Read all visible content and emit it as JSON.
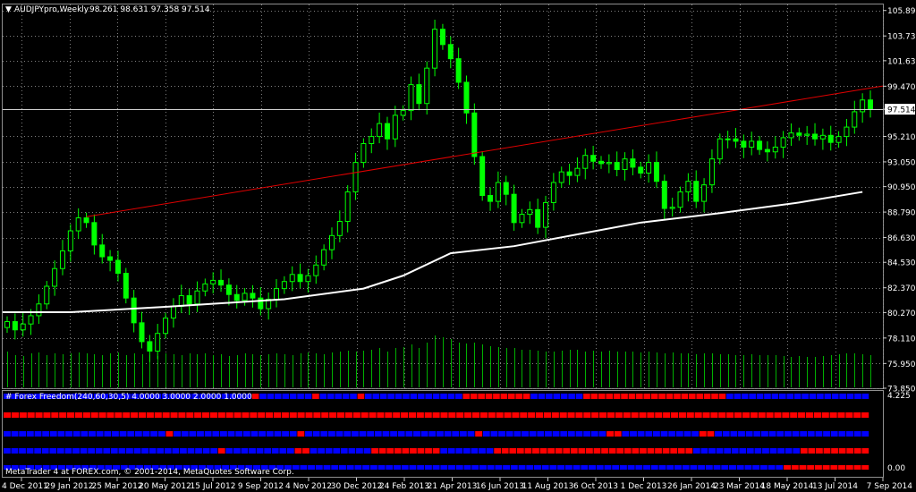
{
  "header": {
    "symbol_label": "AUDJPYpro,Weekly",
    "ohlc_label": "98.261 98.631 97.358 97.514"
  },
  "indicator": {
    "label": "# Forex Freedom(240,60,30,5) 4.0000 3.0000 2.0000 1.0000",
    "scale_top": "4.225",
    "scale_bottom": "0.00"
  },
  "footer": {
    "copyright": "MetaTrader 4 at FOREX.com, © 2001-2014, MetaQuotes Software Corp."
  },
  "colors": {
    "background": "#000000",
    "grid": "#7f7f7f",
    "candle_bull": "#00ff00",
    "candle_bear": "#00ff00",
    "volume": "#00b000",
    "moving_average": "#ffffff",
    "trendline": "#e00000",
    "freedom_up": "#0000ff",
    "freedom_down": "#ff0000",
    "text": "#ffffff"
  },
  "chart_data": {
    "type": "candlestick",
    "symbol": "AUDJPYpro",
    "timeframe": "Weekly",
    "ylim": [
      73.85,
      106.4
    ],
    "y_ticks": [
      "105.890",
      "103.730",
      "101.630",
      "99.470",
      "97.514",
      "95.210",
      "93.050",
      "90.950",
      "88.790",
      "86.630",
      "84.530",
      "82.370",
      "80.270",
      "78.110",
      "75.950",
      "73.850"
    ],
    "current_price": 97.514,
    "x_labels": [
      "4 Dec 2011",
      "29 Jan 2012",
      "25 Mar 2012",
      "20 May 2012",
      "15 Jul 2012",
      "9 Sep 2012",
      "4 Nov 2012",
      "30 Dec 2012",
      "24 Feb 2013",
      "21 Apr 2013",
      "16 Jun 2013",
      "11 Aug 2013",
      "6 Oct 2013",
      "1 Dec 2013",
      "26 Jan 2014",
      "23 Mar 2014",
      "18 May 2014",
      "13 Jul 2014",
      "7 Sep 2014"
    ],
    "close_series": [
      79.5,
      78.8,
      79.3,
      80.0,
      81.0,
      82.5,
      84.0,
      85.5,
      87.2,
      88.3,
      87.9,
      86.0,
      85.0,
      84.7,
      83.6,
      81.5,
      79.4,
      77.8,
      77.0,
      78.5,
      79.8,
      80.8,
      81.7,
      81.0,
      82.1,
      82.7,
      83.0,
      82.6,
      81.8,
      81.3,
      81.9,
      81.5,
      80.6,
      81.4,
      82.3,
      82.9,
      83.5,
      82.9,
      83.4,
      84.3,
      85.6,
      86.8,
      88.0,
      90.5,
      93.0,
      94.6,
      95.2,
      96.3,
      95.0,
      97.0,
      97.4,
      99.6,
      98.0,
      101.0,
      104.3,
      103.0,
      101.8,
      99.8,
      97.2,
      93.5,
      90.2,
      89.7,
      91.3,
      90.3,
      87.9,
      88.6,
      89.0,
      87.5,
      89.6,
      91.3,
      92.2,
      91.9,
      92.5,
      93.6,
      93.1,
      92.9,
      93.0,
      92.4,
      93.3,
      92.6,
      92.1,
      93.0,
      91.4,
      89.1,
      89.2,
      90.5,
      91.4,
      89.7,
      91.1,
      93.3,
      95.0,
      95.0,
      94.8,
      94.3,
      94.8,
      94.1,
      93.9,
      94.3,
      95.1,
      95.5,
      95.3,
      95.4,
      95.0,
      95.3,
      94.7,
      95.2,
      96.0,
      97.3,
      98.3,
      97.5
    ],
    "moving_average_points": [
      [
        0,
        80.3
      ],
      [
        8,
        80.3
      ],
      [
        20,
        80.75
      ],
      [
        35,
        81.4
      ],
      [
        45,
        82.3
      ],
      [
        50,
        83.4
      ],
      [
        56,
        85.3
      ],
      [
        64,
        85.9
      ],
      [
        72,
        86.9
      ],
      [
        80,
        87.9
      ],
      [
        90,
        88.7
      ],
      [
        100,
        89.6
      ],
      [
        108,
        90.5
      ]
    ],
    "trendline_points": [
      [
        10,
        88.4
      ],
      [
        108,
        99.2
      ]
    ],
    "volume": [
      40,
      36,
      35,
      38,
      39,
      36,
      38,
      37,
      38,
      39,
      38,
      37,
      36,
      38,
      39,
      36,
      38,
      37,
      36,
      35,
      38,
      37,
      36,
      38,
      37,
      38,
      36,
      37,
      35,
      36,
      38,
      37,
      36,
      37,
      38,
      37,
      36,
      38,
      39,
      38,
      37,
      39,
      40,
      41,
      40,
      41,
      42,
      44,
      40,
      44,
      45,
      48,
      44,
      50,
      58,
      56,
      54,
      50,
      49,
      50,
      48,
      46,
      45,
      44,
      44,
      42,
      42,
      41,
      40,
      40,
      41,
      42,
      42,
      40,
      41,
      40,
      41,
      40,
      40,
      40,
      39,
      40,
      39,
      38,
      39,
      38,
      38,
      37,
      38,
      38,
      37,
      37,
      36,
      36,
      37,
      36,
      36,
      36,
      35,
      34,
      35,
      34,
      34,
      35,
      36,
      37,
      38,
      38,
      37,
      36
    ],
    "freedom_rows": [
      "BBBBBBBBBBBBBBBBBBBBBBBBBBBBBBBBBRBBBBBBBRBBBBBRBBBBBBBBBBBBBRRRRRRRRRBBBBBBBRRRRRRRRRRRRRRRRRRRBBBBBBBBBBBBBBBBBBB",
      "RRRRRRRRRRRRRRRRRRRRRRRRRRRRRRRRRRRRRRRRRRRRRRRRRRRRRRRRRRRRRRRRRRRRRRRRRRRRRRRRRRRRRRRRRRRRRRRRRRRRRRRRRRRRR",
      "BBBBBBBBBBBBBBBBBBBBBRBBBBBBBBBBBBBBBBRBBBBBBBBBBBBBBBBBBBBBBRBBBBBBBBBBBBBBBBRRBBBBBBBBBBRRBBBBBBBBBBBBBBBBBBBB",
      "BBBBBBBBBBBBBBBBBBBBBBBBBBBBRBBBBBBBBBRRBBBBBBBBRRRRRRRRRBBBBBBBRRRRRRRRRRRRRRRRRRRRRRRRRRBBBBBBBBBBBBBBRRRRRRRRR",
      "BBBBBBBBBBBBBBBBBBBBBBBBBBBBBBBBBBBBBBBBBBBBBBBBBBBBBBBBBBBBBBBBBBBBBBBBBBBBBBBBBBBBBBBBBBBBBBBBBBBBRRRRRRRRRRR"
    ]
  }
}
